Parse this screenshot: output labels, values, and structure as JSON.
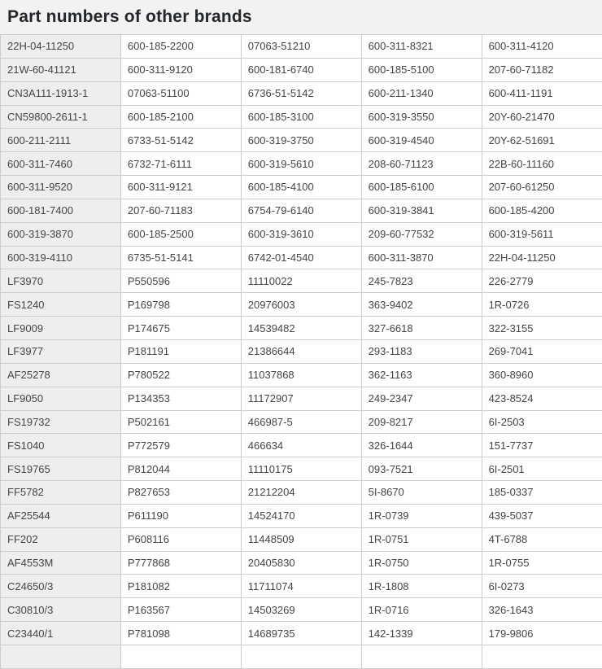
{
  "page": {
    "title": "Part numbers of other brands"
  },
  "colors": {
    "header_bg": "#f2f2f2",
    "first_col_bg": "#eeeeee",
    "cell_bg": "#ffffff",
    "border": "#cccccc",
    "title_text": "#23272b",
    "cell_text": "#444444"
  },
  "table": {
    "rows": [
      [
        "22H-04-11250",
        "600-185-2200",
        "07063-51210",
        "600-311-8321",
        "600-311-4120"
      ],
      [
        "21W-60-41121",
        "600-311-9120",
        "600-181-6740",
        "600-185-5100",
        "207-60-71182"
      ],
      [
        "CN3A111-1913-1",
        "07063-51100",
        "6736-51-5142",
        "600-211-1340",
        "600-411-1191"
      ],
      [
        "CN59800-2611-1",
        "600-185-2100",
        "600-185-3100",
        "600-319-3550",
        "20Y-60-21470"
      ],
      [
        "600-211-2111",
        "6733-51-5142",
        "600-319-3750",
        "600-319-4540",
        "20Y-62-51691"
      ],
      [
        "600-311-7460",
        "6732-71-6111",
        "600-319-5610",
        "208-60-71123",
        "22B-60-11160"
      ],
      [
        "600-311-9520",
        "600-311-9121",
        "600-185-4100",
        "600-185-6100",
        "207-60-61250"
      ],
      [
        "600-181-7400",
        "207-60-71183",
        "6754-79-6140",
        "600-319-3841",
        "600-185-4200"
      ],
      [
        "600-319-3870",
        "600-185-2500",
        "600-319-3610",
        "209-60-77532",
        "600-319-5611"
      ],
      [
        "600-319-4110",
        "6735-51-5141",
        "6742-01-4540",
        "600-311-3870",
        "22H-04-11250"
      ],
      [
        "LF3970",
        "P550596",
        "11110022",
        "245-7823",
        "226-2779"
      ],
      [
        "FS1240",
        "P169798",
        "20976003",
        "363-9402",
        "1R-0726"
      ],
      [
        "LF9009",
        "P174675",
        "14539482",
        "327-6618",
        "322-3155"
      ],
      [
        "LF3977",
        "P181191",
        "21386644",
        "293-1183",
        "269-7041"
      ],
      [
        "AF25278",
        "P780522",
        "11037868",
        "362-1163",
        "360-8960"
      ],
      [
        "LF9050",
        "P134353",
        "11172907",
        "249-2347",
        "423-8524"
      ],
      [
        "FS19732",
        "P502161",
        "466987-5",
        "209-8217",
        "6I-2503"
      ],
      [
        "FS1040",
        "P772579",
        "466634",
        "326-1644",
        "151-7737"
      ],
      [
        "FS19765",
        "P812044",
        "11110175",
        "093-7521",
        "6I-2501"
      ],
      [
        "FF5782",
        "P827653",
        "21212204",
        "5I-8670",
        "185-0337"
      ],
      [
        "AF25544",
        "P611190",
        "14524170",
        "1R-0739",
        "439-5037"
      ],
      [
        "FF202",
        "P608116",
        "11448509",
        "1R-0751",
        "4T-6788"
      ],
      [
        "AF4553M",
        "P777868",
        "20405830",
        "1R-0750",
        "1R-0755"
      ],
      [
        "C24650/3",
        "P181082",
        "11711074",
        "1R-1808",
        "6I-0273"
      ],
      [
        "C30810/3",
        "P163567",
        "14503269",
        "1R-0716",
        "326-1643"
      ],
      [
        "C23440/1",
        "P781098",
        "14689735",
        "142-1339",
        "179-9806"
      ],
      [
        "",
        "",
        "",
        "",
        ""
      ]
    ]
  }
}
